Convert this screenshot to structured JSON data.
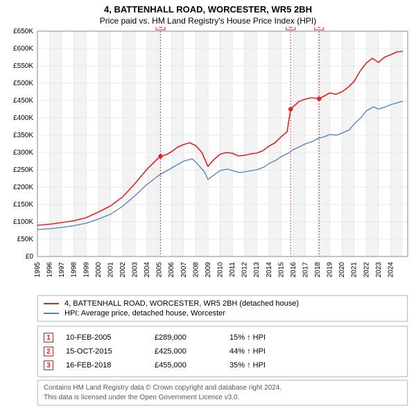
{
  "title": {
    "line1": "4, BATTENHALL ROAD, WORCESTER, WR5 2BH",
    "line2": "Price paid vs. HM Land Registry's House Price Index (HPI)"
  },
  "chart": {
    "type": "line",
    "background_color": "#ffffff",
    "plot_border_color": "#888888",
    "grid_color": "#e8e8e8",
    "gridband_color": "#f3f3f3",
    "x": {
      "label_fontsize": 10,
      "tick_years": [
        1995,
        1996,
        1997,
        1998,
        1999,
        2000,
        2001,
        2002,
        2003,
        2004,
        2005,
        2006,
        2007,
        2008,
        2009,
        2010,
        2011,
        2012,
        2013,
        2014,
        2015,
        2016,
        2017,
        2018,
        2019,
        2020,
        2021,
        2022,
        2023,
        2024
      ],
      "xlim": [
        1995,
        2025.4
      ]
    },
    "y": {
      "label_fontsize": 10,
      "ylim": [
        0,
        650000
      ],
      "tick_step": 50000,
      "tick_labels": [
        "£0",
        "£50K",
        "£100K",
        "£150K",
        "£200K",
        "£250K",
        "£300K",
        "£350K",
        "£400K",
        "£450K",
        "£500K",
        "£550K",
        "£600K",
        "£650K"
      ]
    },
    "series": [
      {
        "id": "price_paid",
        "label": "4, BATTENHALL ROAD, WORCESTER, WR5 2BH (detached house)",
        "color": "#e1201f",
        "line_width": 1.6,
        "points": [
          [
            1995,
            90000
          ],
          [
            1996,
            93000
          ],
          [
            1997,
            98000
          ],
          [
            1998,
            103000
          ],
          [
            1999,
            112000
          ],
          [
            2000,
            128000
          ],
          [
            2001,
            146000
          ],
          [
            2002,
            172000
          ],
          [
            2003,
            210000
          ],
          [
            2004,
            252000
          ],
          [
            2004.9,
            283000
          ],
          [
            2005.11,
            289000
          ],
          [
            2005.6,
            294000
          ],
          [
            2006,
            302000
          ],
          [
            2006.5,
            315000
          ],
          [
            2007,
            323000
          ],
          [
            2007.5,
            328000
          ],
          [
            2008,
            320000
          ],
          [
            2008.5,
            300000
          ],
          [
            2009,
            260000
          ],
          [
            2009.5,
            280000
          ],
          [
            2010,
            295000
          ],
          [
            2010.5,
            300000
          ],
          [
            2011,
            298000
          ],
          [
            2011.5,
            290000
          ],
          [
            2012,
            292000
          ],
          [
            2012.5,
            296000
          ],
          [
            2013,
            298000
          ],
          [
            2013.5,
            305000
          ],
          [
            2014,
            318000
          ],
          [
            2014.5,
            328000
          ],
          [
            2015,
            345000
          ],
          [
            2015.5,
            360000
          ],
          [
            2015.79,
            425000
          ],
          [
            2016,
            432000
          ],
          [
            2016.5,
            448000
          ],
          [
            2017,
            454000
          ],
          [
            2017.5,
            458000
          ],
          [
            2018.13,
            455000
          ],
          [
            2018.5,
            462000
          ],
          [
            2019,
            472000
          ],
          [
            2019.5,
            468000
          ],
          [
            2020,
            475000
          ],
          [
            2020.5,
            488000
          ],
          [
            2021,
            505000
          ],
          [
            2021.5,
            535000
          ],
          [
            2022,
            558000
          ],
          [
            2022.5,
            572000
          ],
          [
            2023,
            560000
          ],
          [
            2023.5,
            575000
          ],
          [
            2024,
            582000
          ],
          [
            2024.5,
            590000
          ],
          [
            2025,
            592000
          ]
        ]
      },
      {
        "id": "hpi",
        "label": "HPI: Average price, detached house, Worcester",
        "color": "#4f7fc5",
        "line_width": 1.3,
        "points": [
          [
            1995,
            78000
          ],
          [
            1996,
            80000
          ],
          [
            1997,
            84000
          ],
          [
            1998,
            89000
          ],
          [
            1999,
            96000
          ],
          [
            2000,
            108000
          ],
          [
            2001,
            122000
          ],
          [
            2002,
            145000
          ],
          [
            2003,
            175000
          ],
          [
            2004,
            208000
          ],
          [
            2005,
            235000
          ],
          [
            2006,
            255000
          ],
          [
            2007,
            275000
          ],
          [
            2007.7,
            282000
          ],
          [
            2008,
            272000
          ],
          [
            2008.7,
            245000
          ],
          [
            2009,
            222000
          ],
          [
            2009.6,
            238000
          ],
          [
            2010,
            248000
          ],
          [
            2010.6,
            252000
          ],
          [
            2011,
            248000
          ],
          [
            2011.6,
            242000
          ],
          [
            2012,
            244000
          ],
          [
            2012.6,
            248000
          ],
          [
            2013,
            250000
          ],
          [
            2013.6,
            258000
          ],
          [
            2014,
            268000
          ],
          [
            2014.6,
            278000
          ],
          [
            2015,
            288000
          ],
          [
            2015.6,
            298000
          ],
          [
            2016,
            308000
          ],
          [
            2016.6,
            318000
          ],
          [
            2017,
            325000
          ],
          [
            2017.6,
            332000
          ],
          [
            2018,
            340000
          ],
          [
            2018.6,
            346000
          ],
          [
            2019,
            352000
          ],
          [
            2019.6,
            350000
          ],
          [
            2020,
            356000
          ],
          [
            2020.6,
            365000
          ],
          [
            2021,
            382000
          ],
          [
            2021.6,
            402000
          ],
          [
            2022,
            420000
          ],
          [
            2022.6,
            432000
          ],
          [
            2023,
            425000
          ],
          [
            2023.6,
            432000
          ],
          [
            2024,
            438000
          ],
          [
            2024.6,
            444000
          ],
          [
            2025,
            448000
          ]
        ]
      }
    ],
    "sale_markers": [
      {
        "id": "1",
        "x": 2005.11,
        "y": 289000,
        "label_y_above": true
      },
      {
        "id": "2",
        "x": 2015.79,
        "y": 425000,
        "label_y_above": true
      },
      {
        "id": "3",
        "x": 2018.13,
        "y": 455000,
        "label_y_above": true
      }
    ],
    "marker_style": {
      "box_border": "#e1201f",
      "box_fill": "#ffffff",
      "box_size": 13,
      "line_color": "#e1201f",
      "line_dash": "2,2",
      "dot_fill": "#e1201f",
      "dot_radius": 3.2
    }
  },
  "legend": {
    "border_color": "#bbbbbb"
  },
  "sales_table": [
    {
      "marker": "1",
      "date": "10-FEB-2005",
      "price": "£289,000",
      "pct": "15% ↑ HPI"
    },
    {
      "marker": "2",
      "date": "15-OCT-2015",
      "price": "£425,000",
      "pct": "44% ↑ HPI"
    },
    {
      "marker": "3",
      "date": "16-FEB-2018",
      "price": "£455,000",
      "pct": "35% ↑ HPI"
    }
  ],
  "footer": {
    "line1": "Contains HM Land Registry data © Crown copyright and database right 2024.",
    "line2": "This data is licensed under the Open Government Licence v3.0."
  }
}
